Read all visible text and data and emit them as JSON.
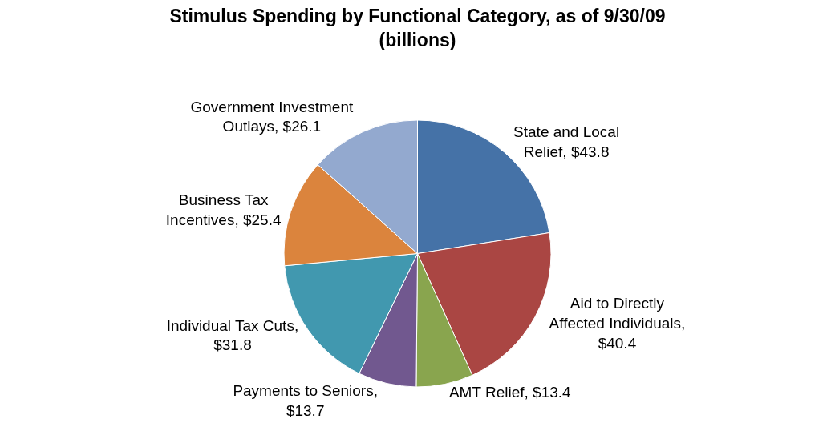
{
  "chart_data": {
    "type": "pie",
    "title": "Stimulus Spending by Functional Category, as of 9/30/09 (billions)",
    "categories": [
      "State and Local Relief, $43.8",
      "Aid to Directly Affected Individuals, $40.4",
      "AMT Relief, $13.4",
      "Payments to Seniors, $13.7",
      "Individual Tax Cuts, $31.8",
      "Business Tax Incentives, $25.4",
      "Government Investment Outlays, $26.1"
    ],
    "values": [
      43.8,
      40.4,
      13.4,
      13.7,
      31.8,
      25.4,
      26.1
    ],
    "colors": [
      "#4572a7",
      "#aa4643",
      "#89a54e",
      "#71588f",
      "#4198af",
      "#db843d",
      "#93a9cf"
    ]
  }
}
